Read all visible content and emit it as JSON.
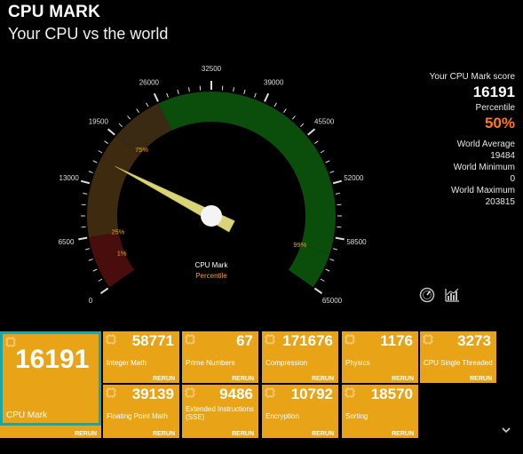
{
  "header": {
    "title": "CPU MARK",
    "subtitle": "Your CPU vs the world"
  },
  "gauge": {
    "min": 0,
    "max": 65000,
    "tick_labels": [
      "0",
      "6500",
      "13000",
      "19500",
      "26000",
      "32500",
      "39000",
      "45500",
      "52000",
      "58500",
      "65000"
    ],
    "band_labels": [
      "1%",
      "25%",
      "75%",
      "99%"
    ],
    "band_bounds": [
      0,
      6500,
      19484,
      26000,
      60500,
      65000
    ],
    "band_colors": [
      "#4a0d0d",
      "#3d2a0f",
      "#3a2a14",
      "#0b4d0b"
    ],
    "needle_value": 16191,
    "center_label": "CPU Mark",
    "center_sublabel": "Percentile",
    "accent_color": "#e8a317"
  },
  "stats": {
    "score_label": "Your CPU Mark score",
    "score": "16191",
    "percentile_label": "Percentile",
    "percentile": "50%",
    "avg_label": "World Average",
    "avg": "19484",
    "min_label": "World Minimum",
    "min": "0",
    "max_label": "World Maximum",
    "max": "203815"
  },
  "icons": {
    "speedometer": "speedometer-icon",
    "chart": "chart-icon",
    "chevron": "chevron-down-icon"
  },
  "main_tile": {
    "value": "16191",
    "label": "CPU Mark",
    "rerun": "RERUN"
  },
  "tiles": [
    {
      "value": "58771",
      "label": "Integer Math",
      "rerun": "RERUN"
    },
    {
      "value": "67",
      "label": "Prime Numbers",
      "rerun": "RERUN"
    },
    {
      "value": "171676",
      "label": "Compression",
      "rerun": "RERUN"
    },
    {
      "value": "1176",
      "label": "Physics",
      "rerun": "RERUN"
    },
    {
      "value": "3273",
      "label": "CPU Single Threaded",
      "rerun": "RERUN"
    },
    {
      "value": "39139",
      "label": "Floating Point Math",
      "rerun": "RERUN"
    },
    {
      "value": "9486",
      "label": "Extended Instructions (SSE)",
      "rerun": "RERUN"
    },
    {
      "value": "10792",
      "label": "Encryption",
      "rerun": "RERUN"
    },
    {
      "value": "18570",
      "label": "Sorting",
      "rerun": "RERUN"
    }
  ]
}
